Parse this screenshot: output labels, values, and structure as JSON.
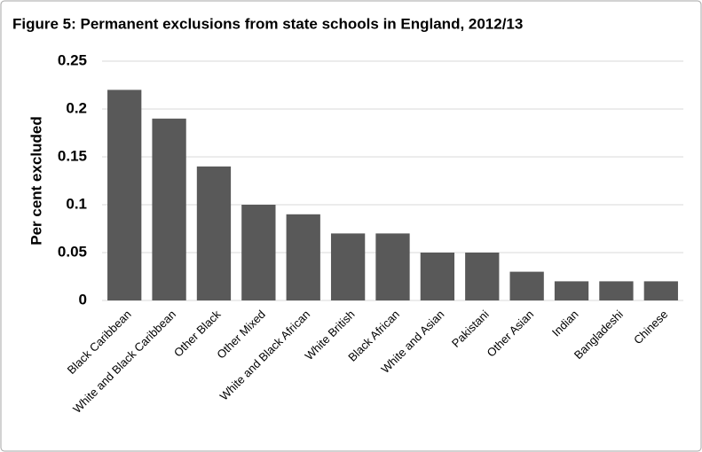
{
  "chart_data": {
    "type": "bar",
    "title": "Figure 5: Permanent exclusions from state schools in England, 2012/13",
    "y_label": "Per cent excluded",
    "categories": [
      "Black Caribbean",
      "White and Black Caribbean",
      "Other Black",
      "Other Mixed",
      "White and Black African",
      "White British",
      "Black African",
      "White and Asian",
      "Pakistani",
      "Other Asian",
      "Indian",
      "Bangladeshi",
      "Chinese"
    ],
    "values": [
      0.22,
      0.19,
      0.14,
      0.1,
      0.09,
      0.07,
      0.07,
      0.05,
      0.05,
      0.03,
      0.02,
      0.02,
      0.02
    ],
    "color": "#595959",
    "ylim": [
      0,
      0.25
    ],
    "yticks": [
      0,
      0.05,
      0.1,
      0.15,
      0.2,
      0.25
    ],
    "grid": true
  }
}
